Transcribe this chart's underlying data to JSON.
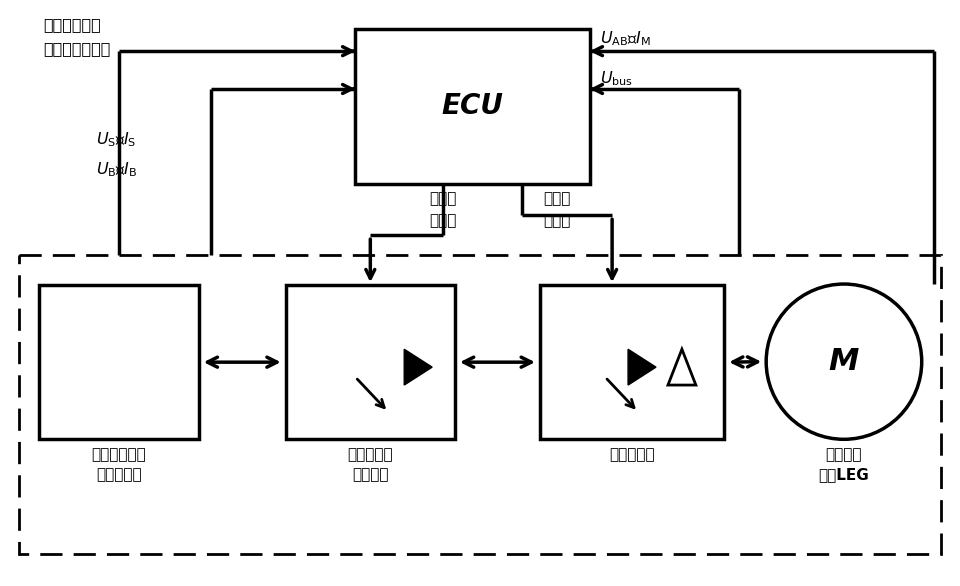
{
  "bg_color": "#ffffff",
  "line_color": "#000000",
  "fig_width": 9.6,
  "fig_height": 5.86,
  "dpi": 100,
  "ecu_label": "ECU",
  "text_ov1": "过压、过流、",
  "text_ov2": "过温等监测信号",
  "text_us_is": "$U_{\\rm S}$、$I_{\\rm S}$",
  "text_ub_ib": "$U_{\\rm B}$、$I_{\\rm B}$",
  "text_uab_im": "$U_{\\rm AB}$、$I_{\\rm M}$",
  "text_ubus": "$U_{\\rm bus}$",
  "text_sw1_1": "开关控",
  "text_sw1_2": "制信号",
  "text_sw2_1": "开关控",
  "text_sw2_2": "制信号",
  "text_power1": "可串并联切换",
  "text_power2": "的供电电源",
  "text_dcdc1": "双向直流功",
  "text_dcdc2": "率变换器",
  "text_inv": "桥式逆变器",
  "text_mot1": "直线直流",
  "text_mot2": "电机LEG",
  "text_m": "M"
}
